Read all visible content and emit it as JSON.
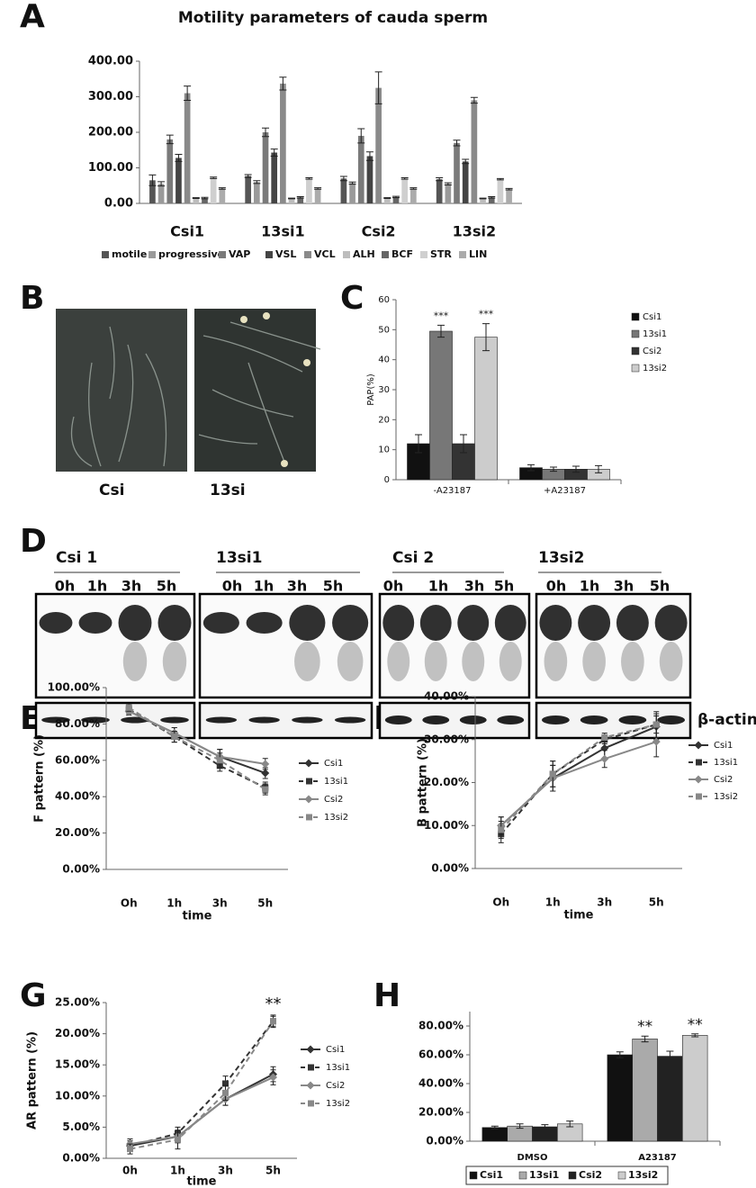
{
  "figure": {
    "panels": [
      "A",
      "B",
      "C",
      "D",
      "E",
      "F",
      "G",
      "H"
    ],
    "micrographs": [
      "Csi",
      "13si"
    ],
    "blot": {
      "groups": [
        {
          "name": "Csi 1",
          "times": [
            "0h",
            "1h",
            "3h",
            "5h"
          ]
        },
        {
          "name": "13si1",
          "times": [
            "0h",
            "1h",
            "3h",
            "5h"
          ]
        },
        {
          "name": "Csi 2",
          "times": [
            "0h",
            "1h",
            "3h",
            "5h"
          ]
        },
        {
          "name": "13si2",
          "times": [
            "0h",
            "1h",
            "3h",
            "5h"
          ]
        }
      ],
      "loading": "β-actin"
    }
  },
  "chart_data": [
    {
      "type": "bar",
      "title": "Motility parameters of cauda sperm",
      "legend": "bottom",
      "categories": [
        "Csi1",
        "13si1",
        "Csi2",
        "13si2"
      ],
      "ylim": [
        0,
        400
      ],
      "yticks": [
        {
          "value": 0,
          "label": "0.00"
        },
        {
          "value": 100,
          "label": "100.00"
        },
        {
          "value": 200,
          "label": "200.00"
        },
        {
          "value": 300,
          "label": "300.00"
        },
        {
          "value": 400,
          "label": "400.00"
        }
      ],
      "series": [
        {
          "name": "motile",
          "color": "#555555",
          "values": [
            65,
            77,
            70,
            68
          ],
          "errors": [
            15,
            4,
            6,
            4
          ]
        },
        {
          "name": "progressive",
          "color": "#9a9a9a",
          "values": [
            55,
            60,
            57,
            55
          ],
          "errors": [
            6,
            4,
            3,
            3
          ]
        },
        {
          "name": "VAP",
          "color": "#7a7a7a",
          "values": [
            180,
            200,
            190,
            170
          ],
          "errors": [
            12,
            12,
            20,
            8
          ]
        },
        {
          "name": "VSL",
          "color": "#444444",
          "values": [
            128,
            143,
            133,
            118
          ],
          "errors": [
            10,
            10,
            12,
            6
          ]
        },
        {
          "name": "VCL",
          "color": "#8a8a8a",
          "values": [
            310,
            337,
            325,
            290
          ],
          "errors": [
            20,
            18,
            45,
            8
          ]
        },
        {
          "name": "ALH",
          "color": "#bdbdbd",
          "values": [
            15,
            14,
            15,
            14
          ],
          "errors": [
            1,
            1,
            1,
            1
          ]
        },
        {
          "name": "BCF",
          "color": "#666666",
          "values": [
            15,
            17,
            18,
            17
          ],
          "errors": [
            2,
            2,
            2,
            2
          ]
        },
        {
          "name": "STR",
          "color": "#cfcfcf",
          "values": [
            72,
            70,
            70,
            68
          ],
          "errors": [
            2,
            2,
            2,
            2
          ]
        },
        {
          "name": "LIN",
          "color": "#ababab",
          "values": [
            42,
            42,
            42,
            40
          ],
          "errors": [
            2,
            2,
            2,
            2
          ]
        }
      ]
    },
    {
      "type": "bar",
      "y_label": "PAP(%)",
      "legend": "right",
      "categories": [
        "-A23187",
        "+A23187"
      ],
      "ylim": [
        0,
        60
      ],
      "yticks": [
        0,
        10,
        20,
        30,
        40,
        50,
        60
      ],
      "series": [
        {
          "name": "Csi1",
          "color": "#111111",
          "values": [
            12,
            4
          ],
          "errors": [
            3,
            1
          ]
        },
        {
          "name": "13si1",
          "color": "#777777",
          "values": [
            49.5,
            3.5
          ],
          "errors": [
            2,
            0.7
          ],
          "significance": [
            "***",
            null
          ]
        },
        {
          "name": "Csi2",
          "color": "#333333",
          "values": [
            12,
            3.5
          ],
          "errors": [
            3,
            1
          ]
        },
        {
          "name": "13si2",
          "color": "#cccccc",
          "values": [
            47.5,
            3.5
          ],
          "errors": [
            4.5,
            1.2
          ],
          "significance": [
            "***",
            null
          ]
        }
      ]
    },
    {
      "type": "line",
      "y_label": "F pattern (%)",
      "x_label": "time",
      "legend": "right",
      "categories": [
        "Oh",
        "1h",
        "3h",
        "5h"
      ],
      "ylim": [
        0,
        100
      ],
      "yticks": [
        {
          "value": 0,
          "label": "0.00%"
        },
        {
          "value": 20,
          "label": "20.00%"
        },
        {
          "value": 40,
          "label": "40.00%"
        },
        {
          "value": 60,
          "label": "60.00%"
        },
        {
          "value": 80,
          "label": "80.00%"
        },
        {
          "value": 100,
          "label": "100.00%"
        }
      ],
      "series": [
        {
          "name": "Csi1",
          "color": "#333333",
          "dash": false,
          "marker": "diamond",
          "values": [
            87,
            75,
            62,
            53
          ],
          "errors": [
            2,
            3,
            4,
            3
          ]
        },
        {
          "name": "13si1",
          "color": "#333333",
          "dash": true,
          "marker": "square",
          "values": [
            88,
            73,
            57,
            45
          ],
          "errors": [
            2,
            3,
            3,
            3
          ]
        },
        {
          "name": "Csi2",
          "color": "#888888",
          "dash": false,
          "marker": "diamond",
          "values": [
            87,
            75,
            62,
            58
          ],
          "errors": [
            2,
            3,
            4,
            3
          ]
        },
        {
          "name": "13si2",
          "color": "#888888",
          "dash": true,
          "marker": "square",
          "values": [
            89,
            73,
            60,
            44
          ],
          "errors": [
            2,
            3,
            4,
            3
          ]
        }
      ]
    },
    {
      "type": "line",
      "y_label": "B pattern (%)",
      "x_label": "time",
      "legend": "right",
      "categories": [
        "Oh",
        "1h",
        "3h",
        "5h"
      ],
      "ylim": [
        0,
        40
      ],
      "yticks": [
        {
          "value": 0,
          "label": "0.00%"
        },
        {
          "value": 10,
          "label": "10.00%"
        },
        {
          "value": 20,
          "label": "20.00%"
        },
        {
          "value": 30,
          "label": "30.00%"
        },
        {
          "value": 40,
          "label": "40.00%"
        }
      ],
      "series": [
        {
          "name": "Csi1",
          "color": "#333333",
          "dash": false,
          "marker": "diamond",
          "values": [
            10,
            21,
            28,
            33
          ],
          "errors": [
            2,
            3,
            2.5,
            3
          ]
        },
        {
          "name": "13si1",
          "color": "#333333",
          "dash": true,
          "marker": "square",
          "values": [
            8,
            22,
            30,
            33.5
          ],
          "errors": [
            2,
            3,
            1,
            2
          ]
        },
        {
          "name": "Csi2",
          "color": "#888888",
          "dash": false,
          "marker": "diamond",
          "values": [
            10,
            21,
            25.5,
            29.5
          ],
          "errors": [
            2,
            3,
            2,
            3.5
          ]
        },
        {
          "name": "13si2",
          "color": "#888888",
          "dash": true,
          "marker": "square",
          "values": [
            9,
            22,
            30.5,
            33.5
          ],
          "errors": [
            2,
            3,
            1,
            3
          ]
        }
      ]
    },
    {
      "type": "line",
      "y_label": "AR pattern (%)",
      "x_label": "time",
      "legend": "right",
      "categories": [
        "0h",
        "1h",
        "3h",
        "5h"
      ],
      "significance": [
        null,
        null,
        null,
        "**"
      ],
      "ylim": [
        0,
        25
      ],
      "yticks": [
        {
          "value": 0,
          "label": "0.00%"
        },
        {
          "value": 5,
          "label": "5.00%"
        },
        {
          "value": 10,
          "label": "10.00%"
        },
        {
          "value": 15,
          "label": "15.00%"
        },
        {
          "value": 20,
          "label": "20.00%"
        },
        {
          "value": 25,
          "label": "25.00%"
        }
      ],
      "series": [
        {
          "name": "Csi1",
          "color": "#333333",
          "dash": false,
          "marker": "diamond",
          "values": [
            2,
            3.5,
            9.5,
            13.5
          ],
          "errors": [
            0.8,
            1,
            1,
            1.2
          ]
        },
        {
          "name": "13si1",
          "color": "#333333",
          "dash": true,
          "marker": "square",
          "values": [
            2,
            4,
            12,
            22
          ],
          "errors": [
            0.8,
            1,
            1.2,
            0.8
          ]
        },
        {
          "name": "Csi2",
          "color": "#888888",
          "dash": false,
          "marker": "diamond",
          "values": [
            2.3,
            3.5,
            9.5,
            13
          ],
          "errors": [
            0.8,
            1,
            1,
            1.2
          ]
        },
        {
          "name": "13si2",
          "color": "#888888",
          "dash": true,
          "marker": "square",
          "values": [
            1.5,
            3,
            10.5,
            22
          ],
          "errors": [
            0.8,
            1.5,
            1.2,
            1
          ]
        }
      ]
    },
    {
      "type": "bar",
      "legend": "bottom-box",
      "categories": [
        "DMSO",
        "A23187"
      ],
      "ylim": [
        0,
        90
      ],
      "yticks": [
        {
          "value": 0,
          "label": "0.00%"
        },
        {
          "value": 20,
          "label": "20.00%"
        },
        {
          "value": 40,
          "label": "40.00%"
        },
        {
          "value": 60,
          "label": "60.00%"
        },
        {
          "value": 80,
          "label": "80.00%"
        }
      ],
      "series": [
        {
          "name": "Csi1",
          "color": "#111111",
          "values": [
            9.5,
            60
          ],
          "errors": [
            1,
            2
          ]
        },
        {
          "name": "13si1",
          "color": "#aaaaaa",
          "values": [
            10.5,
            71
          ],
          "errors": [
            1.5,
            2
          ],
          "significance": [
            null,
            "**"
          ]
        },
        {
          "name": "Csi2",
          "color": "#222222",
          "values": [
            10,
            59
          ],
          "errors": [
            1.5,
            3.5
          ]
        },
        {
          "name": "13si2",
          "color": "#cccccc",
          "values": [
            12,
            73.5
          ],
          "errors": [
            2,
            1
          ],
          "significance": [
            null,
            "**"
          ]
        }
      ]
    }
  ]
}
